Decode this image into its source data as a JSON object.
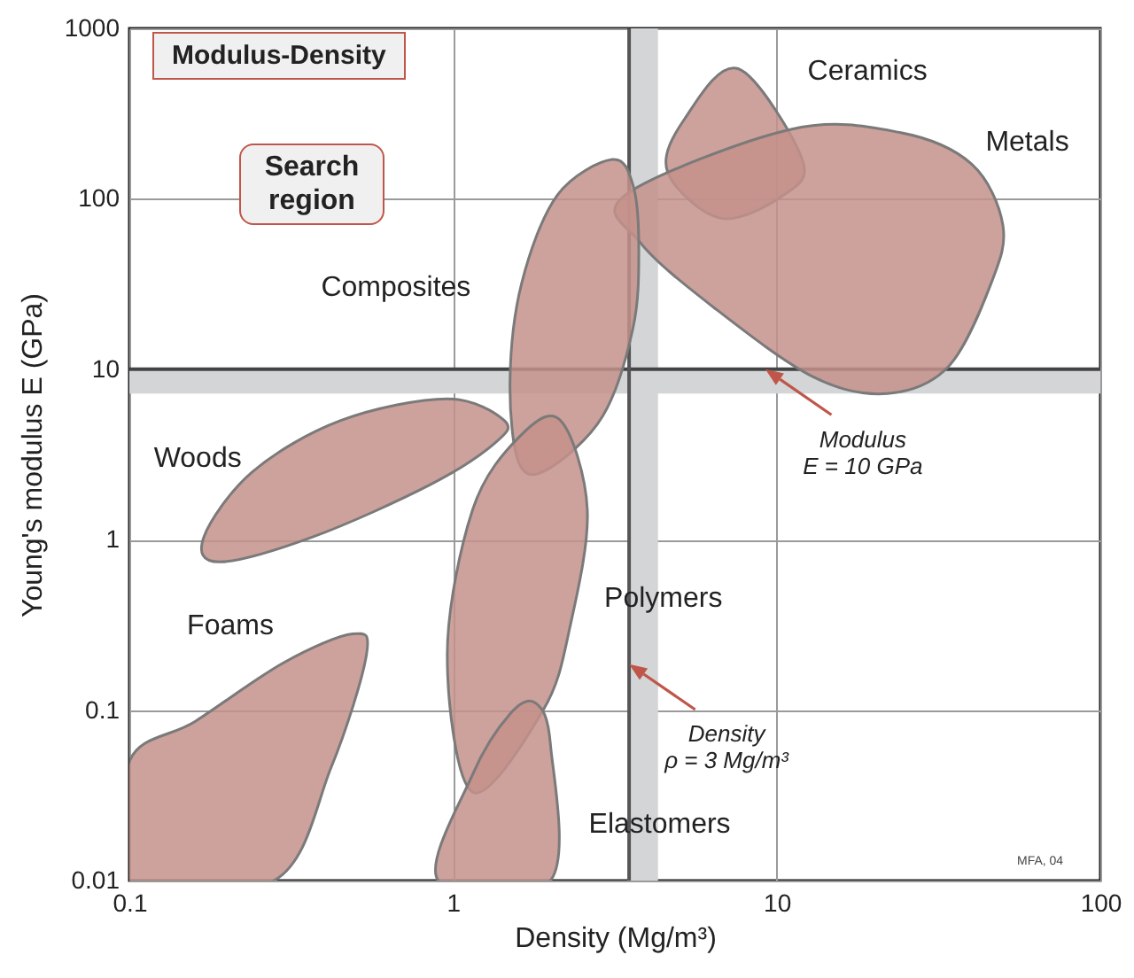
{
  "chart_data": {
    "type": "area",
    "xlabel": "Density  (Mg/m³)",
    "ylabel": "Young's modulus E  (GPa)",
    "log": "xy",
    "grid": true,
    "xlim": [
      0.1,
      100
    ],
    "xticks": [
      0.1,
      1,
      10,
      100
    ],
    "ylim": [
      0.01,
      1000
    ],
    "yticks": [
      0.01,
      0.1,
      1,
      10,
      100,
      1000
    ],
    "series": [
      {
        "name": "Ceramics",
        "color": "#c4908b",
        "x": [
          7.6,
          12,
          10.5,
          6.7,
          4.6,
          5.2
        ],
        "values": [
          580,
          170,
          105,
          77,
          144,
          295
        ]
      },
      {
        "name": "Metals",
        "color": "#c4908b",
        "x": [
          3.4,
          11,
          24,
          40,
          50,
          46,
          34,
          22,
          13,
          6.4,
          3.8
        ],
        "values": [
          105,
          255,
          245,
          160,
          70,
          32,
          10.4,
          7.2,
          9,
          23,
          55
        ]
      },
      {
        "name": "Composites",
        "color": "#c4908b",
        "x": [
          3.1,
          3.6,
          3.75,
          3.6,
          2.9,
          1.97,
          1.6,
          1.5,
          1.63,
          2.1
        ],
        "values": [
          170,
          120,
          51,
          17.5,
          5.3,
          2.6,
          2.8,
          8.5,
          32,
          105
        ]
      },
      {
        "name": "Woods",
        "color": "#c4908b",
        "x": [
          1.44,
          0.96,
          0.45,
          0.24,
          0.17,
          0.19,
          0.37,
          0.85,
          1.35
        ],
        "values": [
          5.0,
          6.7,
          5.0,
          2.5,
          1.04,
          0.74,
          1.04,
          2.1,
          3.7
        ]
      },
      {
        "name": "Foams",
        "color": "#c4908b",
        "x": [
          0.1,
          0.1,
          0.28,
          0.42,
          0.54,
          0.49,
          0.3,
          0.16
        ],
        "values": [
          0.05,
          0.01,
          0.01,
          0.046,
          0.21,
          0.28,
          0.19,
          0.086
        ]
      },
      {
        "name": "Polymers",
        "color": "#c4908b",
        "x": [
          2.15,
          2.6,
          2.3,
          1.9,
          1.15,
          0.96,
          1.15,
          1.6
        ],
        "values": [
          5.0,
          1.5,
          0.31,
          0.1,
          0.033,
          0.21,
          1.5,
          4.0
        ]
      },
      {
        "name": "Elastomers",
        "color": "#c4908b",
        "x": [
          1.8,
          2.0,
          2.0,
          0.9,
          1.15,
          1.5
        ],
        "values": [
          0.11,
          0.063,
          0.01,
          0.01,
          0.042,
          0.095
        ]
      }
    ],
    "bands": [
      {
        "axis": "y",
        "from": 7.2,
        "to": 10,
        "color": "#d3d5d7"
      },
      {
        "axis": "x",
        "from": 3.5,
        "to": 4.3,
        "color": "#d3d5d7"
      }
    ],
    "ref_lines": [
      {
        "axis": "y",
        "value": 10,
        "label": "Modulus\nE = 10 GPa",
        "color": "#444444"
      },
      {
        "axis": "x",
        "value": 3.5,
        "label": "Density\nρ = 3 Mg/m³",
        "color": "#555555"
      }
    ],
    "annotations": [
      "Modulus-Density",
      "Search region",
      "MFA, 04"
    ]
  }
}
